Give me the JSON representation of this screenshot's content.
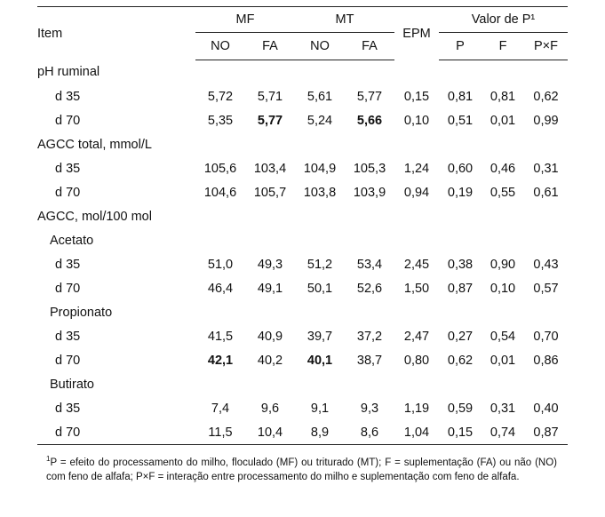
{
  "header": {
    "item": "Item",
    "mf": "MF",
    "mt": "MT",
    "epm": "EPM",
    "valor": "Valor de P¹",
    "no": "NO",
    "fa": "FA",
    "p": "P",
    "f": "F",
    "pxf": "P×F"
  },
  "rows": [
    {
      "label": "pH ruminal",
      "indent": 0,
      "values": []
    },
    {
      "label": "d 35",
      "indent": 2,
      "values": [
        "5,72",
        "5,71",
        "5,61",
        "5,77",
        "0,15",
        "0,81",
        "0,81",
        "0,62"
      ],
      "bold": []
    },
    {
      "label": "d 70",
      "indent": 2,
      "values": [
        "5,35",
        "5,77",
        "5,24",
        "5,66",
        "0,10",
        "0,51",
        "0,01",
        "0,99"
      ],
      "bold": [
        1,
        3
      ]
    },
    {
      "label": "AGCC total, mmol/L",
      "indent": 0,
      "values": []
    },
    {
      "label": "d 35",
      "indent": 2,
      "values": [
        "105,6",
        "103,4",
        "104,9",
        "105,3",
        "1,24",
        "0,60",
        "0,46",
        "0,31"
      ],
      "bold": []
    },
    {
      "label": "d 70",
      "indent": 2,
      "values": [
        "104,6",
        "105,7",
        "103,8",
        "103,9",
        "0,94",
        "0,19",
        "0,55",
        "0,61"
      ],
      "bold": []
    },
    {
      "label": "AGCC, mol/100 mol",
      "indent": 0,
      "values": []
    },
    {
      "label": "Acetato",
      "indent": 1,
      "values": []
    },
    {
      "label": "d 35",
      "indent": 2,
      "values": [
        "51,0",
        "49,3",
        "51,2",
        "53,4",
        "2,45",
        "0,38",
        "0,90",
        "0,43"
      ],
      "bold": []
    },
    {
      "label": "d 70",
      "indent": 2,
      "values": [
        "46,4",
        "49,1",
        "50,1",
        "52,6",
        "1,50",
        "0,87",
        "0,10",
        "0,57"
      ],
      "bold": []
    },
    {
      "label": "Propionato",
      "indent": 1,
      "values": []
    },
    {
      "label": "d 35",
      "indent": 2,
      "values": [
        "41,5",
        "40,9",
        "39,7",
        "37,2",
        "2,47",
        "0,27",
        "0,54",
        "0,70"
      ],
      "bold": []
    },
    {
      "label": "d 70",
      "indent": 2,
      "values": [
        "42,1",
        "40,2",
        "40,1",
        "38,7",
        "0,80",
        "0,62",
        "0,01",
        "0,86"
      ],
      "bold": [
        0,
        2
      ]
    },
    {
      "label": "Butirato",
      "indent": 1,
      "values": []
    },
    {
      "label": "d 35",
      "indent": 2,
      "values": [
        "7,4",
        "9,6",
        "9,1",
        "9,3",
        "1,19",
        "0,59",
        "0,31",
        "0,40"
      ],
      "bold": []
    },
    {
      "label": "d 70",
      "indent": 2,
      "values": [
        "11,5",
        "10,4",
        "8,9",
        "8,6",
        "1,04",
        "0,15",
        "0,74",
        "0,87"
      ],
      "bold": []
    }
  ],
  "footnote": {
    "mark": "1",
    "text": "P = efeito do processamento do milho, floculado (MF) ou triturado (MT); F = suplementação (FA) ou não (NO) com feno de alfafa; P×F = interação entre processamento do milho e suplementação com feno de alfafa."
  }
}
